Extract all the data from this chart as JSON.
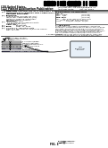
{
  "background_color": "#ffffff",
  "header_left_line1": "(19) United States",
  "header_left_line2": "(12) Patent Application Publication",
  "header_left_line3": "    (Zhao et al.)",
  "header_right_line1": "(10) Pub. No.: US 2013/0089872 A1",
  "header_right_line2": "(43) Pub. Date:        Apr. 11, 2013",
  "title_lines": [
    "ONE-STEP PROCESSING OF HYDROGELS FOR",
    "MECHANICALLY ROBUST AND CHEMICALLY",
    "DESIRED FEATURES"
  ],
  "inventors_name1": "Xuanhe Zhao, Durham, NC (US);",
  "inventors_name2": "Yanhui Bai, Cambridge, MA (US);",
  "inventors_name3": "Nathaniel Huebsch, Watertown,",
  "inventors_name4": "MA (US); David J. Mooney,",
  "inventors_name5": "Concord, MA (US)",
  "assignee1": "The Trustees of Harvard University,",
  "assignee2": "Cambridge, MA (US)",
  "appl_no": "13/608,908",
  "filed": "Sept. 11, 2012",
  "related1": "Provisional application No. 61/533,363, filed on",
  "related2": "Sept. 12, 2011.",
  "int_cl1": "C08J  3/075              (2006.01)",
  "int_cl2": "C08L  5/04               (2006.01)",
  "int_cl3": "C08L  5/08               (2006.01)",
  "uspc": "CPC ... C08J 3/075 (2013.01); C08L 5/04",
  "uspc2": "       (2013.01); C08L 5/08 (2013.01)",
  "uspc3": "USPC ........ 523/109; 514/55; 514/56",
  "abstract_lines": [
    "An application for a reactive biomaterial composition",
    "designable, process-optimizable to address the remaining",
    "challenges and opportunities and to develop a structure",
    "that is biologically active and chemically desired for",
    "multiple applications. The reactive composition comprises",
    "a first polymer and a second polymer interpenetrating",
    "the first network crosslinked ionically and covalently.",
    "The hydrogel shows extreme stretchability, toughness,",
    "and self-healing capability for biomedical applications."
  ],
  "fig_sheet_text": "1 Drawing Sheet",
  "fig_label": "FIG. 1"
}
